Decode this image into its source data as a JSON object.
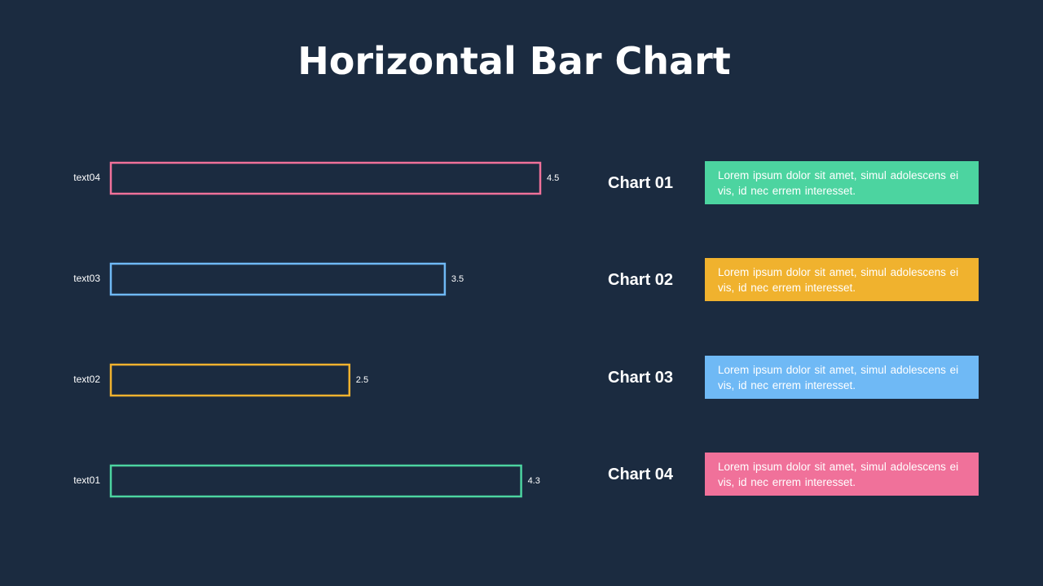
{
  "title": "Horizontal Bar Chart",
  "chart_data": {
    "type": "bar",
    "orientation": "horizontal",
    "title": "Horizontal Bar Chart",
    "categories": [
      "text04",
      "text03",
      "text02",
      "text01"
    ],
    "values": [
      4.5,
      3.5,
      2.5,
      4.3
    ],
    "colors": [
      "#f0719a",
      "#6fb9f5",
      "#f0b22e",
      "#4cd4a0"
    ],
    "xlim": [
      0,
      4.5
    ],
    "grid": false,
    "bar_style": "outline"
  },
  "legend": [
    {
      "heading": "Chart 01",
      "text": "Lorem ipsum dolor sit amet, simul adolescens ei vis, id nec errem interesset.",
      "color": "#4cd4a0"
    },
    {
      "heading": "Chart 02",
      "text": "Lorem ipsum dolor sit amet, simul adolescens ei vis, id nec errem interesset.",
      "color": "#f0b22e"
    },
    {
      "heading": "Chart 03",
      "text": "Lorem ipsum dolor sit amet, simul adolescens ei vis, id nec errem interesset.",
      "color": "#6fb9f5"
    },
    {
      "heading": "Chart 04",
      "text": "Lorem ipsum dolor sit amet, simul adolescens ei vis, id nec errem interesset.",
      "color": "#f0719a"
    }
  ]
}
